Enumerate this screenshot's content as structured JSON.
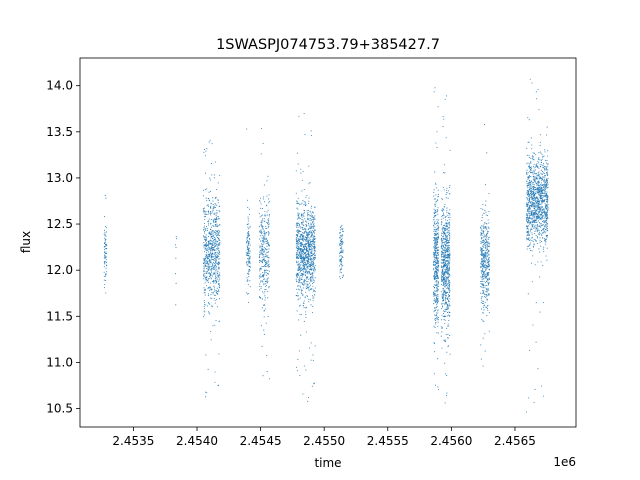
{
  "chart_data": {
    "type": "scatter",
    "title": "1SWASPJ074753.79+385427.7",
    "xlabel": "time",
    "ylabel": "flux",
    "x_offset_label": "1e6",
    "xlim": [
      2453080,
      2456980
    ],
    "ylim": [
      10.3,
      14.3
    ],
    "x_ticks": [
      2453500,
      2454000,
      2454500,
      2455000,
      2455500,
      2456000,
      2456500
    ],
    "x_tick_labels": [
      "2.4535",
      "2.4540",
      "2.4545",
      "2.4550",
      "2.4555",
      "2.4560",
      "2.4565"
    ],
    "y_ticks": [
      10.5,
      11.0,
      11.5,
      12.0,
      12.5,
      13.0,
      13.5,
      14.0
    ],
    "y_tick_labels": [
      "10.5",
      "11.0",
      "11.5",
      "12.0",
      "12.5",
      "13.0",
      "13.5",
      "14.0"
    ],
    "grid": false,
    "point_color": "#1f77b4",
    "clusters": [
      {
        "x_start": 2453270,
        "x_end": 2453290,
        "center": 12.2,
        "spread": 0.2,
        "min": 11.4,
        "max": 12.9,
        "count": 70
      },
      {
        "x_start": 2453830,
        "x_end": 2453840,
        "center": 12.2,
        "spread": 0.2,
        "min": 11.6,
        "max": 12.5,
        "count": 8
      },
      {
        "x_start": 2454050,
        "x_end": 2454180,
        "center": 12.2,
        "spread": 0.3,
        "min": 10.6,
        "max": 13.6,
        "count": 700
      },
      {
        "x_start": 2454390,
        "x_end": 2454420,
        "center": 12.2,
        "spread": 0.2,
        "min": 11.3,
        "max": 14.1,
        "count": 120
      },
      {
        "x_start": 2454490,
        "x_end": 2454570,
        "center": 12.2,
        "spread": 0.3,
        "min": 10.5,
        "max": 13.7,
        "count": 320
      },
      {
        "x_start": 2454780,
        "x_end": 2454930,
        "center": 12.2,
        "spread": 0.25,
        "min": 10.55,
        "max": 13.85,
        "count": 1000
      },
      {
        "x_start": 2455120,
        "x_end": 2455150,
        "center": 12.2,
        "spread": 0.15,
        "min": 11.9,
        "max": 12.65,
        "count": 90
      },
      {
        "x_start": 2455860,
        "x_end": 2455900,
        "center": 12.1,
        "spread": 0.35,
        "min": 10.5,
        "max": 14.0,
        "count": 420
      },
      {
        "x_start": 2455920,
        "x_end": 2455990,
        "center": 12.1,
        "spread": 0.35,
        "min": 10.55,
        "max": 13.9,
        "count": 650
      },
      {
        "x_start": 2456230,
        "x_end": 2456300,
        "center": 12.1,
        "spread": 0.25,
        "min": 10.55,
        "max": 13.65,
        "count": 420
      },
      {
        "x_start": 2456590,
        "x_end": 2456760,
        "center": 12.75,
        "spread": 0.25,
        "min": 10.45,
        "max": 14.1,
        "count": 1100
      }
    ]
  }
}
